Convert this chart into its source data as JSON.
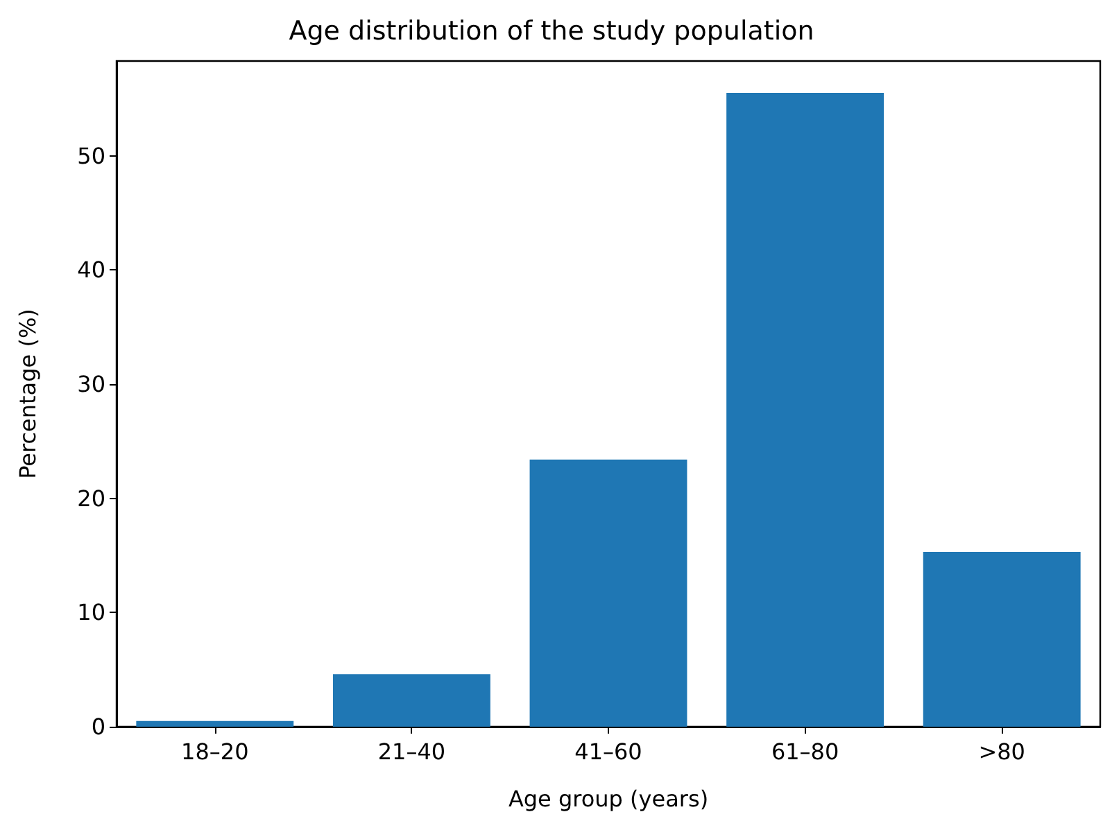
{
  "chart_data": {
    "type": "bar",
    "title": "Age distribution of the study population",
    "xlabel": "Age group (years)",
    "ylabel": "Percentage (%)",
    "categories": [
      "18–20",
      "21–40",
      "41–60",
      "61–80",
      ">80"
    ],
    "values": [
      0.5,
      4.6,
      23.4,
      55.5,
      15.3
    ],
    "color": "#1f77b4",
    "ylim": [
      0,
      58.3
    ],
    "yticks": [
      0,
      10,
      20,
      30,
      40,
      50
    ],
    "grid": false
  }
}
